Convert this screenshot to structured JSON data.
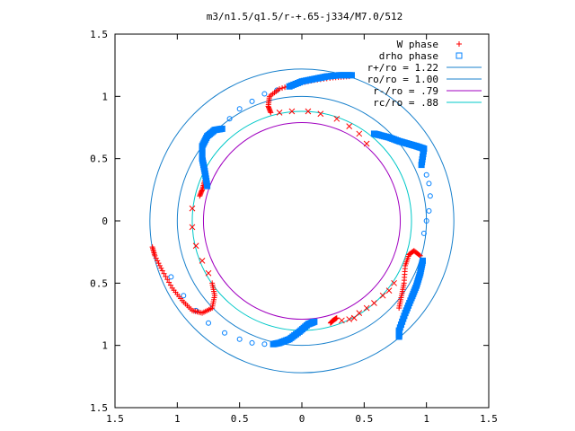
{
  "chart_data": {
    "type": "scatter",
    "title": "m3/n1.5/q1.5/r-+.65-j334/M7.0/512",
    "xlabel": "",
    "ylabel": "",
    "xlim": [
      -1.5,
      1.5
    ],
    "ylim": [
      -1.5,
      1.5
    ],
    "x_ticks": [
      {
        "value": -1.5,
        "label": "1.5"
      },
      {
        "value": -1.0,
        "label": "1"
      },
      {
        "value": -0.5,
        "label": "0.5"
      },
      {
        "value": 0.0,
        "label": "0"
      },
      {
        "value": 0.5,
        "label": "0.5"
      },
      {
        "value": 1.0,
        "label": "1"
      },
      {
        "value": 1.5,
        "label": "1.5"
      }
    ],
    "y_ticks": [
      {
        "value": 1.5,
        "label": "1.5"
      },
      {
        "value": 1.0,
        "label": "1"
      },
      {
        "value": 0.5,
        "label": "0.5"
      },
      {
        "value": 0.0,
        "label": "0"
      },
      {
        "value": -0.5,
        "label": "0.5"
      },
      {
        "value": -1.0,
        "label": "1"
      },
      {
        "value": -1.5,
        "label": "1.5"
      }
    ],
    "grid": false,
    "legend_position": "top-right",
    "series": [
      {
        "name": "W phase",
        "marker": "plus",
        "color": "#ff0000"
      },
      {
        "name": "drho phase",
        "marker": "square",
        "color": "#0080ff"
      }
    ],
    "circles": [
      {
        "label": "r+/ro = 1.22",
        "r": 1.22,
        "color": "#1880cc"
      },
      {
        "label": "ro/ro = 1.00",
        "r": 1.0,
        "color": "#1880cc"
      },
      {
        "label": "r-/ro =  .79",
        "r": 0.79,
        "color": "#a000c0"
      },
      {
        "label": "rc/ro =  .88",
        "r": 0.88,
        "color": "#00c8c8"
      }
    ],
    "arms": [
      {
        "series": 1,
        "dense": [
          [
            0.96,
            0.45
          ],
          [
            0.98,
            0.58
          ],
          [
            0.92,
            0.6
          ],
          [
            0.85,
            0.62
          ],
          [
            0.78,
            0.64
          ],
          [
            0.7,
            0.67
          ],
          [
            0.62,
            0.69
          ],
          [
            0.58,
            0.7
          ]
        ],
        "sparse": [
          [
            1.0,
            0.37
          ],
          [
            1.02,
            0.3
          ],
          [
            1.03,
            0.2
          ],
          [
            1.02,
            0.08
          ],
          [
            1.0,
            0.0
          ],
          [
            0.98,
            -0.1
          ]
        ]
      },
      {
        "series": 0,
        "dense": [
          [
            0.95,
            -0.28
          ],
          [
            0.9,
            -0.24
          ],
          [
            0.86,
            -0.27
          ],
          [
            0.83,
            -0.36
          ],
          [
            0.82,
            -0.5
          ],
          [
            0.8,
            -0.6
          ],
          [
            0.78,
            -0.7
          ]
        ],
        "sparse": [
          [
            0.74,
            -0.5
          ],
          [
            0.7,
            -0.56
          ],
          [
            0.65,
            -0.6
          ],
          [
            0.58,
            -0.66
          ],
          [
            0.52,
            -0.7
          ],
          [
            0.46,
            -0.74
          ]
        ]
      },
      {
        "series": 1,
        "dense": [
          [
            0.97,
            -0.32
          ],
          [
            0.95,
            -0.42
          ],
          [
            0.92,
            -0.52
          ],
          [
            0.88,
            -0.62
          ],
          [
            0.83,
            -0.74
          ],
          [
            0.78,
            -0.88
          ],
          [
            0.78,
            -0.93
          ]
        ],
        "sparse": []
      },
      {
        "series": 0,
        "dense": [
          [
            0.28,
            -0.78
          ],
          [
            0.25,
            -0.8
          ],
          [
            0.23,
            -0.82
          ]
        ],
        "sparse": [
          [
            0.32,
            -0.8
          ],
          [
            0.38,
            -0.79
          ],
          [
            0.42,
            -0.78
          ]
        ]
      },
      {
        "series": 1,
        "dense": [
          [
            0.1,
            -0.81
          ],
          [
            0.05,
            -0.83
          ],
          [
            -0.02,
            -0.89
          ],
          [
            -0.1,
            -0.95
          ],
          [
            -0.18,
            -0.98
          ],
          [
            -0.23,
            -0.99
          ]
        ],
        "sparse": [
          [
            -0.3,
            -0.99
          ],
          [
            -0.4,
            -0.98
          ],
          [
            -0.5,
            -0.95
          ],
          [
            -0.62,
            -0.9
          ],
          [
            -0.75,
            -0.82
          ],
          [
            -0.85,
            -0.72
          ],
          [
            -0.95,
            -0.6
          ],
          [
            -1.05,
            -0.45
          ]
        ]
      },
      {
        "series": 0,
        "dense": [
          [
            -0.72,
            -0.5
          ],
          [
            -0.7,
            -0.6
          ],
          [
            -0.72,
            -0.7
          ],
          [
            -0.8,
            -0.74
          ],
          [
            -0.88,
            -0.72
          ],
          [
            -0.96,
            -0.64
          ],
          [
            -1.04,
            -0.54
          ],
          [
            -1.12,
            -0.4
          ],
          [
            -1.18,
            -0.28
          ],
          [
            -1.2,
            -0.21
          ]
        ],
        "sparse": [
          [
            -0.75,
            -0.42
          ],
          [
            -0.8,
            -0.32
          ],
          [
            -0.85,
            -0.2
          ],
          [
            -0.88,
            -0.05
          ],
          [
            -0.88,
            0.1
          ]
        ]
      },
      {
        "series": 0,
        "dense": [
          [
            -0.82,
            0.2
          ],
          [
            -0.8,
            0.25
          ],
          [
            -0.78,
            0.32
          ]
        ],
        "sparse": []
      },
      {
        "series": 1,
        "dense": [
          [
            -0.76,
            0.28
          ],
          [
            -0.78,
            0.4
          ],
          [
            -0.8,
            0.5
          ],
          [
            -0.8,
            0.6
          ],
          [
            -0.76,
            0.68
          ],
          [
            -0.7,
            0.73
          ],
          [
            -0.64,
            0.74
          ]
        ],
        "sparse": [
          [
            -0.58,
            0.82
          ],
          [
            -0.5,
            0.9
          ],
          [
            -0.4,
            0.96
          ],
          [
            -0.3,
            1.02
          ],
          [
            -0.2,
            1.05
          ],
          [
            -0.1,
            1.08
          ]
        ]
      },
      {
        "series": 0,
        "dense": [
          [
            -0.25,
            0.87
          ],
          [
            -0.27,
            0.92
          ],
          [
            -0.26,
            1.0
          ],
          [
            -0.18,
            1.06
          ],
          [
            -0.05,
            1.1
          ],
          [
            0.1,
            1.13
          ],
          [
            0.25,
            1.15
          ],
          [
            0.38,
            1.16
          ]
        ],
        "sparse": [
          [
            -0.18,
            0.87
          ],
          [
            -0.08,
            0.88
          ],
          [
            0.05,
            0.88
          ],
          [
            0.15,
            0.86
          ],
          [
            0.28,
            0.82
          ],
          [
            0.38,
            0.76
          ],
          [
            0.46,
            0.7
          ],
          [
            0.52,
            0.62
          ]
        ]
      },
      {
        "series": 1,
        "dense": [
          [
            -0.1,
            1.08
          ],
          [
            0.0,
            1.12
          ],
          [
            0.1,
            1.14
          ],
          [
            0.2,
            1.16
          ],
          [
            0.3,
            1.17
          ],
          [
            0.4,
            1.17
          ]
        ],
        "sparse": []
      }
    ]
  }
}
